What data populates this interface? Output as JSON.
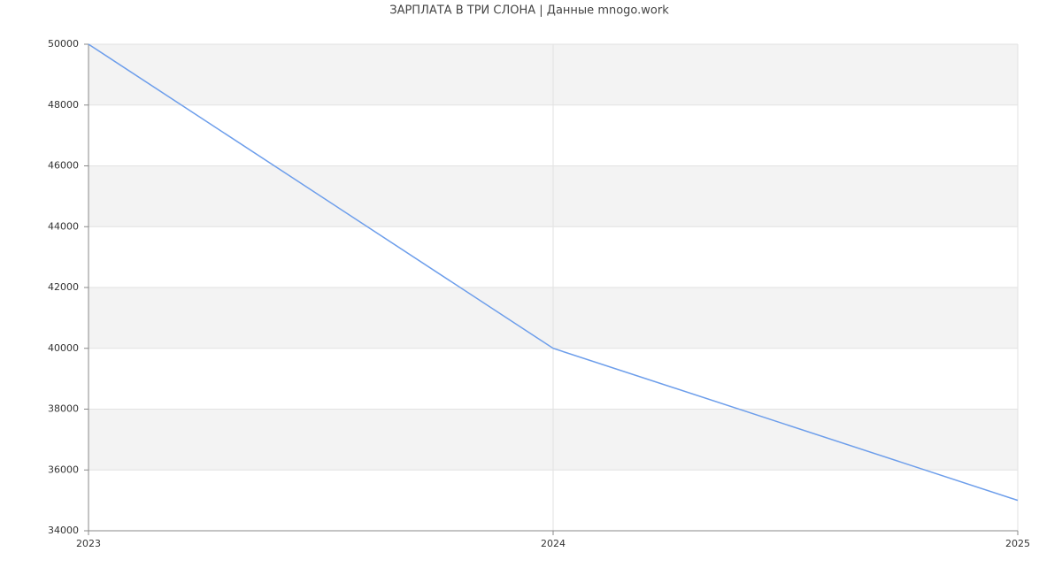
{
  "chart_data": {
    "type": "line",
    "title": "ЗАРПЛАТА В ТРИ СЛОНА | Данные mnogo.work",
    "x": [
      2023,
      2024,
      2025
    ],
    "series": [
      {
        "name": "ЗАРПЛАТА",
        "color": "#6d9eeb",
        "values": [
          50000,
          40000,
          35000
        ]
      }
    ],
    "xlim": [
      2023,
      2025
    ],
    "xticks": [
      2023,
      2024,
      2025
    ],
    "ylim": [
      34000,
      50000
    ],
    "yticks": [
      34000,
      36000,
      38000,
      40000,
      42000,
      44000,
      46000,
      48000,
      50000
    ],
    "grid": true,
    "band_color": "#f3f3f3"
  }
}
